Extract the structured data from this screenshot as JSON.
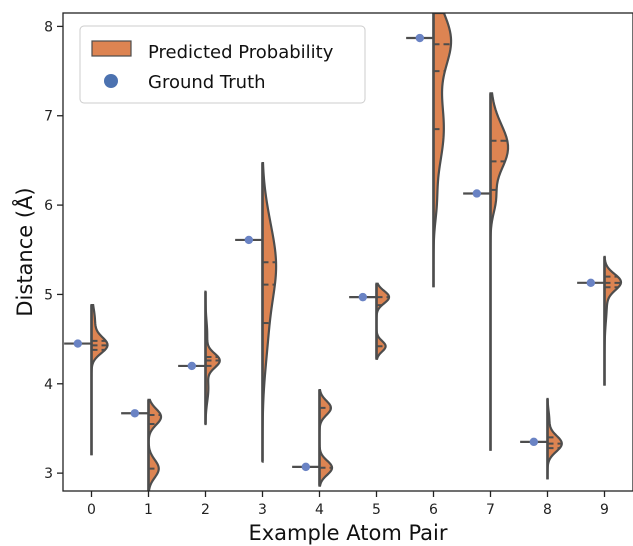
{
  "chart_data": {
    "type": "violin",
    "xlabel": "Example Atom Pair",
    "ylabel": "Distance (Å)",
    "categories": [
      "0",
      "1",
      "2",
      "3",
      "4",
      "5",
      "6",
      "7",
      "8",
      "9"
    ],
    "yticks": [
      "3",
      "4",
      "5",
      "6",
      "7",
      "8"
    ],
    "ylim": [
      2.8,
      8.15
    ],
    "legend": {
      "placement": "top-left",
      "entries": [
        {
          "label": "Predicted Probability",
          "color": "#dd8452",
          "marker": "patch"
        },
        {
          "label": "Ground Truth",
          "color": "#4c72b0",
          "marker": "dot"
        }
      ]
    },
    "series": [
      {
        "name": "Predicted Probability",
        "side": "right",
        "violins": [
          {
            "min": 3.2,
            "max": 4.88,
            "modes": [
              {
                "center": 4.43,
                "width": 0.27,
                "sd": 0.09
              },
              {
                "center": 4.7,
                "width": 0.06,
                "sd": 0.15
              }
            ],
            "quartiles": [
              4.38,
              4.43,
              4.48
            ]
          },
          {
            "min": 2.8,
            "max": 3.82,
            "modes": [
              {
                "center": 3.63,
                "width": 0.22,
                "sd": 0.09
              },
              {
                "center": 3.05,
                "width": 0.18,
                "sd": 0.1
              }
            ],
            "quartiles": [
              3.05,
              3.55,
              3.65
            ]
          },
          {
            "min": 3.55,
            "max": 5.03,
            "modes": [
              {
                "center": 4.26,
                "width": 0.24,
                "sd": 0.08
              },
              {
                "center": 3.95,
                "width": 0.05,
                "sd": 0.15
              },
              {
                "center": 4.55,
                "width": 0.03,
                "sd": 0.15
              }
            ],
            "quartiles": [
              4.2,
              4.26,
              4.3
            ]
          },
          {
            "min": 3.13,
            "max": 6.47,
            "modes": [
              {
                "center": 5.33,
                "width": 0.22,
                "sd": 0.38
              },
              {
                "center": 4.55,
                "width": 0.08,
                "sd": 0.4
              },
              {
                "center": 5.9,
                "width": 0.04,
                "sd": 0.3
              }
            ],
            "quartiles": [
              4.68,
              5.11,
              5.36
            ]
          },
          {
            "min": 2.86,
            "max": 3.93,
            "modes": [
              {
                "center": 3.73,
                "width": 0.2,
                "sd": 0.08
              },
              {
                "center": 3.06,
                "width": 0.22,
                "sd": 0.08
              }
            ],
            "quartiles": [
              3.06,
              3.25,
              3.73
            ]
          },
          {
            "min": 4.28,
            "max": 5.12,
            "modes": [
              {
                "center": 4.97,
                "width": 0.22,
                "sd": 0.07
              },
              {
                "center": 4.42,
                "width": 0.16,
                "sd": 0.06
              }
            ],
            "quartiles": [
              4.42,
              4.88,
              4.97
            ]
          },
          {
            "min": 5.08,
            "max": 8.15,
            "modes": [
              {
                "center": 7.85,
                "width": 0.3,
                "sd": 0.3
              },
              {
                "center": 6.85,
                "width": 0.18,
                "sd": 0.4
              },
              {
                "center": 6.0,
                "width": 0.04,
                "sd": 0.2
              }
            ],
            "quartiles": [
              6.85,
              7.5,
              7.8
            ]
          },
          {
            "min": 3.25,
            "max": 7.25,
            "modes": [
              {
                "center": 6.62,
                "width": 0.28,
                "sd": 0.24
              },
              {
                "center": 6.05,
                "width": 0.08,
                "sd": 0.15
              },
              {
                "center": 6.9,
                "width": 0.05,
                "sd": 0.25
              }
            ],
            "quartiles": [
              6.17,
              6.49,
              6.72
            ]
          },
          {
            "min": 2.93,
            "max": 3.83,
            "modes": [
              {
                "center": 3.33,
                "width": 0.25,
                "sd": 0.09
              },
              {
                "center": 3.6,
                "width": 0.03,
                "sd": 0.1
              }
            ],
            "quartiles": [
              3.28,
              3.33,
              3.4
            ]
          },
          {
            "min": 3.98,
            "max": 5.42,
            "modes": [
              {
                "center": 5.14,
                "width": 0.27,
                "sd": 0.09
              },
              {
                "center": 4.9,
                "width": 0.04,
                "sd": 0.2
              }
            ],
            "quartiles": [
              5.08,
              5.13,
              5.2
            ]
          }
        ]
      },
      {
        "name": "Ground Truth",
        "values": [
          4.45,
          3.67,
          4.2,
          5.61,
          3.07,
          4.97,
          7.87,
          6.13,
          3.35,
          5.13
        ]
      }
    ]
  }
}
